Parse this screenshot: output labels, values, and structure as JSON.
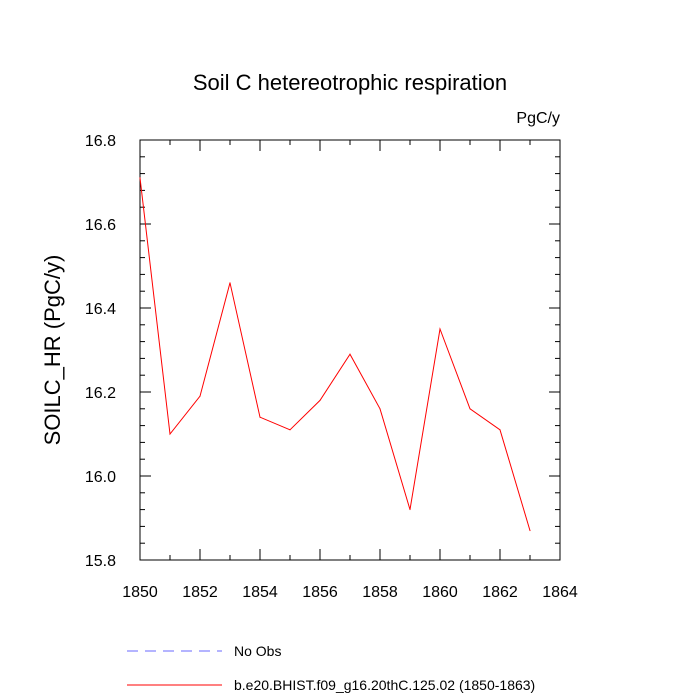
{
  "chart_data": {
    "type": "line",
    "title": "Soil C hetereotrophic respiration",
    "units_label": "PgC/y",
    "xlabel": "",
    "ylabel": "SOILC_HR  (PgC/y)",
    "xlim": [
      1850,
      1864
    ],
    "ylim": [
      15.8,
      16.8
    ],
    "x_ticks": [
      "1850",
      "1852",
      "1854",
      "1856",
      "1858",
      "1860",
      "1862",
      "1864"
    ],
    "y_ticks": [
      "15.8",
      "16.0",
      "16.2",
      "16.4",
      "16.6",
      "16.8"
    ],
    "series": [
      {
        "name": "b.e20.BHIST.f09_g16.20thC.125.02 (1850-1863)",
        "color": "#ff0000",
        "style": "solid",
        "x": [
          1850,
          1851,
          1852,
          1853,
          1854,
          1855,
          1856,
          1857,
          1858,
          1859,
          1860,
          1861,
          1862,
          1863
        ],
        "values": [
          16.71,
          16.1,
          16.19,
          16.46,
          16.14,
          16.11,
          16.18,
          16.29,
          16.16,
          15.92,
          16.35,
          16.16,
          16.11,
          15.87
        ]
      }
    ],
    "legend": [
      {
        "label": "No Obs",
        "color": "#6a6aff",
        "style": "dashed"
      },
      {
        "label": "b.e20.BHIST.f09_g16.20thC.125.02 (1850-1863)",
        "color": "#ff0000",
        "style": "solid"
      }
    ],
    "legend_position": "bottom"
  }
}
